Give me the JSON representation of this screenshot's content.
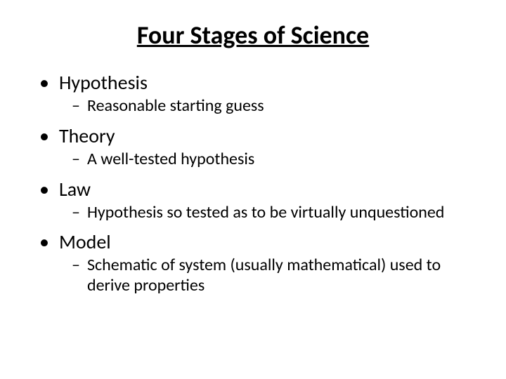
{
  "title": "Four Stages of Science",
  "items": [
    {
      "label": "Hypothesis",
      "sub": "Reasonable starting guess"
    },
    {
      "label": "Theory",
      "sub": "A well-tested hypothesis"
    },
    {
      "label": "Law",
      "sub": "Hypothesis so tested as to be virtually unquestioned"
    },
    {
      "label": "Model",
      "sub": "Schematic of system (usually mathematical) used to derive properties"
    }
  ],
  "colors": {
    "background": "#ffffff",
    "text": "#000000"
  },
  "typography": {
    "title_fontsize": 36,
    "title_weight": "bold",
    "title_underline": true,
    "level1_fontsize": 28,
    "level2_fontsize": 24,
    "font_family": "Calibri"
  },
  "bullets": {
    "level1": "•",
    "level2": "–"
  }
}
